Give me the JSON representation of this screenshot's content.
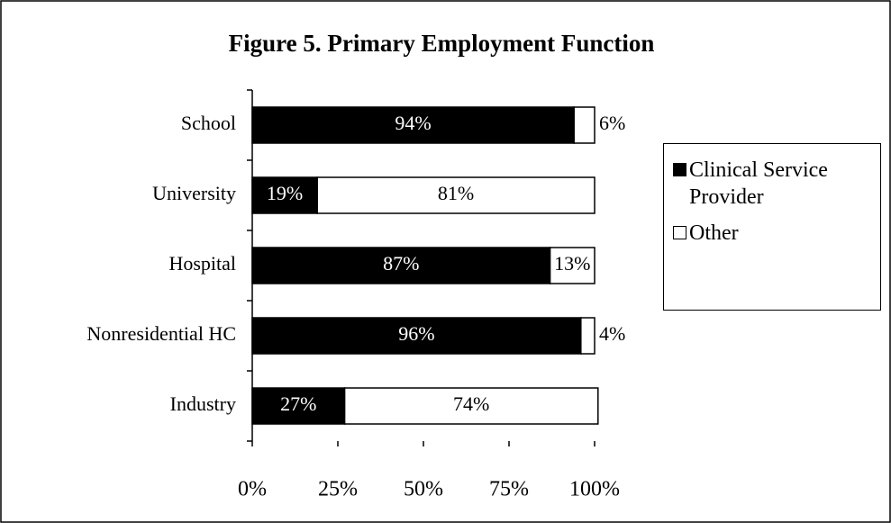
{
  "chart_data": {
    "type": "stacked-barh",
    "title": "Figure 5.  Primary Employment Function",
    "categories": [
      "School",
      "University",
      "Hospital",
      "Nonresidential HC",
      "Industry"
    ],
    "series": [
      {
        "name": "Clinical Service Provider",
        "color": "#000000",
        "values": [
          94,
          19,
          87,
          96,
          27
        ],
        "value_labels": [
          "94%",
          "19%",
          "87%",
          "96%",
          "27%"
        ]
      },
      {
        "name": "Other",
        "color": "#ffffff",
        "values": [
          6,
          81,
          13,
          4,
          74
        ],
        "value_labels": [
          "6%",
          "81%",
          "13%",
          "4%",
          "74%"
        ]
      }
    ],
    "xlim": [
      0,
      100
    ],
    "xticks": [
      {
        "value": 0,
        "label": "0%"
      },
      {
        "value": 25,
        "label": "25%"
      },
      {
        "value": 50,
        "label": "50%"
      },
      {
        "value": 75,
        "label": "75%"
      },
      {
        "value": 100,
        "label": "100%"
      }
    ],
    "legend": "right"
  }
}
